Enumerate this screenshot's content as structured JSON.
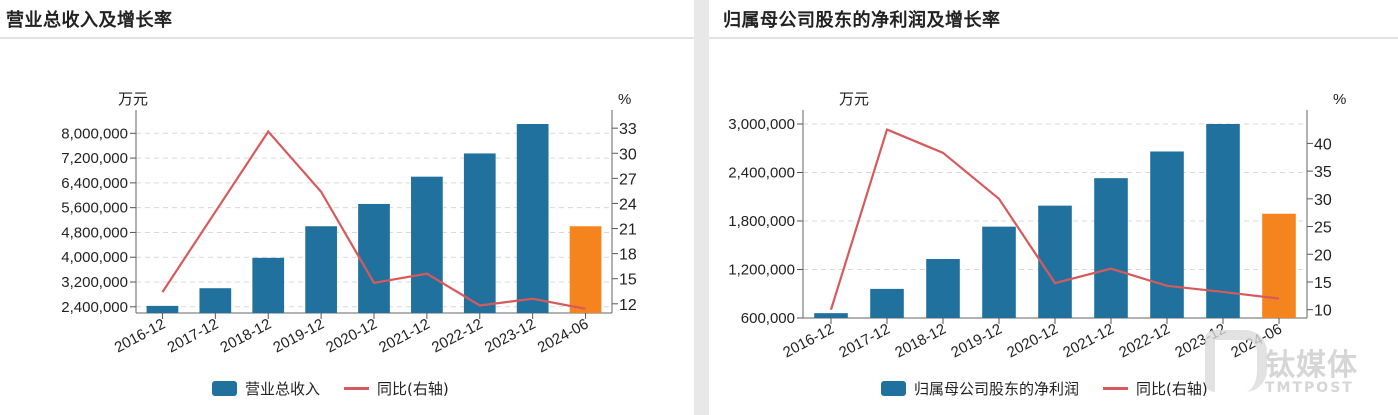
{
  "panels": [
    {
      "title": "营业总收入及增长率",
      "left_unit": "万元",
      "right_unit": "%",
      "legend": {
        "bar_label": "营业总收入",
        "line_label": "同比(右轴)"
      }
    },
    {
      "title": "归属母公司股东的净利润及增长率",
      "left_unit": "万元",
      "right_unit": "%",
      "legend": {
        "bar_label": "归属母公司股东的净利润",
        "line_label": "同比(右轴)"
      }
    }
  ],
  "colors": {
    "bar": "#21719f",
    "bar_highlight": "#f5841f",
    "line": "#d65a5c",
    "grid": "#d9d9d9"
  },
  "watermark": {
    "cn": "钛媒体",
    "en": "TMTPOST"
  },
  "chart_data": [
    {
      "type": "bar",
      "title": "营业总收入及增长率",
      "categories": [
        "2016-12",
        "2017-12",
        "2018-12",
        "2019-12",
        "2020-12",
        "2021-12",
        "2022-12",
        "2023-12",
        "2024-06"
      ],
      "series": [
        {
          "name": "营业总收入",
          "type": "bar",
          "axis": "left",
          "values": [
            2430000,
            3000000,
            3980000,
            5000000,
            5720000,
            6600000,
            7350000,
            8300000,
            5000000
          ]
        },
        {
          "name": "同比(右轴)",
          "type": "line",
          "axis": "right",
          "values": [
            13.4,
            23.0,
            32.6,
            25.4,
            14.5,
            15.6,
            11.8,
            12.6,
            11.4
          ]
        }
      ],
      "ylabel": "万元",
      "y2label": "%",
      "yticks": [
        2400000,
        3200000,
        4000000,
        4800000,
        5600000,
        6400000,
        7200000,
        8000000
      ],
      "ytick_labels": [
        "2,400,000",
        "3,200,000",
        "4,000,000",
        "4,800,000",
        "5,600,000",
        "6,400,000",
        "7,200,000",
        "8,000,000"
      ],
      "ylim": [
        2200000,
        8300000
      ],
      "y2ticks": [
        12,
        15,
        18,
        21,
        24,
        27,
        30,
        33
      ],
      "y2lim": [
        10.9,
        33.5
      ],
      "grid": true,
      "legend_position": "bottom",
      "highlight_last_bar": true
    },
    {
      "type": "bar",
      "title": "归属母公司股东的净利润及增长率",
      "categories": [
        "2016-12",
        "2017-12",
        "2018-12",
        "2019-12",
        "2020-12",
        "2021-12",
        "2022-12",
        "2023-12",
        "2024-06"
      ],
      "series": [
        {
          "name": "归属母公司股东的净利润",
          "type": "bar",
          "axis": "left",
          "values": [
            660000,
            960000,
            1330000,
            1730000,
            1990000,
            2330000,
            2660000,
            3000000,
            1890000
          ]
        },
        {
          "name": "同比(右轴)",
          "type": "line",
          "axis": "right",
          "values": [
            10.0,
            42.5,
            38.3,
            30.0,
            14.8,
            17.4,
            14.3,
            13.2,
            12.0
          ]
        }
      ],
      "ylabel": "万元",
      "y2label": "%",
      "yticks": [
        600000,
        1200000,
        1800000,
        2400000,
        3000000
      ],
      "ytick_labels": [
        "600,000",
        "1,200,000",
        "1,800,000",
        "2,400,000",
        "3,000,000"
      ],
      "ylim": [
        600000,
        3000000
      ],
      "y2ticks": [
        10,
        15,
        20,
        25,
        30,
        35,
        40
      ],
      "y2lim": [
        8.5,
        43.5
      ],
      "grid": true,
      "legend_position": "bottom",
      "highlight_last_bar": true
    }
  ]
}
